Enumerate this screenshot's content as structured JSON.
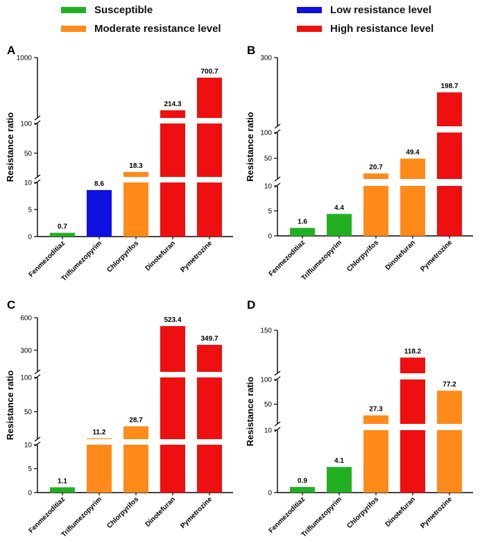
{
  "legend": {
    "items": [
      {
        "label": "Susceptible",
        "color": "#22b022"
      },
      {
        "label": "Moderate resistance level",
        "color": "#ff8a1a"
      },
      {
        "label": "Low resistance level",
        "color": "#1010e0"
      },
      {
        "label": "High resistance level",
        "color": "#ee1010"
      }
    ]
  },
  "chart_data": [
    {
      "panel": "A",
      "type": "bar",
      "ylabel": "Resistance ratio",
      "categories": [
        "Fenmezoditiaz",
        "Triflumezopyrim",
        "Chlorpyrifos",
        "Dinotefuran",
        "Pymetrozine"
      ],
      "values": [
        0.7,
        8.6,
        18.3,
        214.3,
        700.7
      ],
      "value_labels": [
        "0.7",
        "8.6",
        "18.3",
        "214.3",
        "700.7"
      ],
      "levels": [
        "Susceptible",
        "Low resistance level",
        "Moderate resistance level",
        "High resistance level",
        "High resistance level"
      ],
      "axis_segments": [
        {
          "range": [
            0,
            10
          ],
          "ticks": [
            "0",
            "5",
            "10"
          ]
        },
        {
          "range": [
            10,
            100
          ],
          "ticks": [
            "50",
            "100"
          ]
        },
        {
          "range": [
            100,
            1000
          ],
          "ticks": [
            "1000"
          ]
        }
      ]
    },
    {
      "panel": "B",
      "type": "bar",
      "ylabel": "Resistance ratio",
      "categories": [
        "Fenmezoditiaz",
        "Triflumezopyrim",
        "Chlorpyrifos",
        "Dinotefuran",
        "Pymetrozine"
      ],
      "values": [
        1.6,
        4.4,
        20.7,
        49.4,
        198.7
      ],
      "value_labels": [
        "1.6",
        "4.4",
        "20.7",
        "49.4",
        "198.7"
      ],
      "levels": [
        "Susceptible",
        "Susceptible",
        "Moderate resistance level",
        "Moderate resistance level",
        "High resistance level"
      ],
      "axis_segments": [
        {
          "range": [
            0,
            10
          ],
          "ticks": [
            "0",
            "5",
            "10"
          ]
        },
        {
          "range": [
            10,
            100
          ],
          "ticks": [
            "50",
            "100"
          ]
        },
        {
          "range": [
            100,
            300
          ],
          "ticks": [
            "300"
          ]
        }
      ]
    },
    {
      "panel": "C",
      "type": "bar",
      "ylabel": "Resistance ratio",
      "categories": [
        "Fenmezoditiaz",
        "Triflumezopyrim",
        "Chlorpyrifos",
        "Dinotefuran",
        "Pymetrozine"
      ],
      "values": [
        1.1,
        11.2,
        28.7,
        523.4,
        349.7
      ],
      "value_labels": [
        "1.1",
        "11.2",
        "28.7",
        "523.4",
        "349.7"
      ],
      "levels": [
        "Susceptible",
        "Moderate resistance level",
        "Moderate resistance level",
        "High resistance level",
        "High resistance level"
      ],
      "axis_segments": [
        {
          "range": [
            0,
            10
          ],
          "ticks": [
            "0",
            "5",
            "10"
          ]
        },
        {
          "range": [
            10,
            100
          ],
          "ticks": [
            "50",
            "100"
          ]
        },
        {
          "range": [
            100,
            600
          ],
          "ticks": [
            "300",
            "600"
          ]
        }
      ]
    },
    {
      "panel": "D",
      "type": "bar",
      "ylabel": "Resistance ratio",
      "categories": [
        "Fenmezoditiaz",
        "Triflumezopyrim",
        "Chlorpyrifos",
        "Dinotefuran",
        "Pymetrozine"
      ],
      "values": [
        0.9,
        4.1,
        27.3,
        118.2,
        77.2
      ],
      "value_labels": [
        "0.9",
        "4.1",
        "27.3",
        "118.2",
        "77.2"
      ],
      "levels": [
        "Susceptible",
        "Susceptible",
        "Moderate resistance level",
        "High resistance level",
        "Moderate resistance level"
      ],
      "axis_segments": [
        {
          "range": [
            0,
            10
          ],
          "ticks": [
            "0",
            "10"
          ]
        },
        {
          "range": [
            10,
            100
          ],
          "ticks": [
            "50",
            "100"
          ]
        },
        {
          "range": [
            100,
            150
          ],
          "ticks": [
            "150"
          ]
        }
      ]
    }
  ]
}
